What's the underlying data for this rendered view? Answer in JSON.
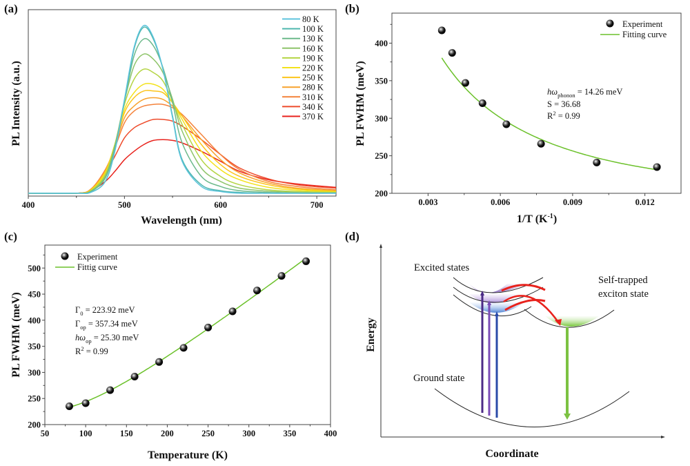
{
  "chart_data": [
    {
      "panel": "(a)",
      "type": "line",
      "xlabel": "Wavelength (nm)",
      "ylabel": "PL Intensity (a.u.)",
      "xlim": [
        400,
        720
      ],
      "ylim": [
        -0.017,
        1.095
      ],
      "xticks": [
        400,
        500,
        600,
        700
      ],
      "legend_position": "top-right",
      "x": [
        400,
        450,
        465,
        480,
        490,
        500,
        510,
        520,
        530,
        540,
        550,
        560,
        580,
        600,
        620,
        650,
        680,
        720
      ],
      "series": [
        {
          "name": "80 K",
          "color": "#5cc3dc",
          "values": [
            0,
            0,
            0.005,
            0.07,
            0.25,
            0.56,
            0.87,
            1.0,
            0.93,
            0.74,
            0.45,
            0.19,
            0.04,
            0.01,
            0,
            0,
            0,
            0
          ]
        },
        {
          "name": "100 K",
          "color": "#4eb6ad",
          "values": [
            0,
            0,
            0.006,
            0.07,
            0.25,
            0.55,
            0.86,
            0.99,
            0.92,
            0.74,
            0.46,
            0.2,
            0.05,
            0.015,
            0.005,
            0,
            0,
            0
          ]
        },
        {
          "name": "130 K",
          "color": "#6cb98a",
          "values": [
            0,
            0,
            0.01,
            0.09,
            0.27,
            0.55,
            0.82,
            0.92,
            0.88,
            0.75,
            0.54,
            0.3,
            0.1,
            0.04,
            0.015,
            0.005,
            0,
            0
          ]
        },
        {
          "name": "160 K",
          "color": "#8ec46a",
          "values": [
            0,
            0,
            0.012,
            0.1,
            0.28,
            0.55,
            0.76,
            0.83,
            0.8,
            0.72,
            0.56,
            0.37,
            0.15,
            0.07,
            0.03,
            0.012,
            0.005,
            0.002
          ]
        },
        {
          "name": "190 K",
          "color": "#b4d443",
          "values": [
            0,
            0,
            0.015,
            0.11,
            0.29,
            0.53,
            0.68,
            0.74,
            0.72,
            0.67,
            0.55,
            0.41,
            0.2,
            0.1,
            0.05,
            0.02,
            0.01,
            0.005
          ]
        },
        {
          "name": "220 K",
          "color": "#f3e21b",
          "values": [
            0,
            0,
            0.018,
            0.12,
            0.29,
            0.5,
            0.6,
            0.65,
            0.65,
            0.62,
            0.54,
            0.44,
            0.25,
            0.14,
            0.08,
            0.035,
            0.018,
            0.008
          ]
        },
        {
          "name": "250 K",
          "color": "#fcc41a",
          "values": [
            0,
            0,
            0.02,
            0.13,
            0.29,
            0.48,
            0.57,
            0.61,
            0.61,
            0.6,
            0.54,
            0.46,
            0.29,
            0.17,
            0.1,
            0.05,
            0.025,
            0.012
          ]
        },
        {
          "name": "280 K",
          "color": "#f7a12b",
          "values": [
            0,
            0,
            0.022,
            0.13,
            0.28,
            0.45,
            0.52,
            0.56,
            0.57,
            0.56,
            0.52,
            0.46,
            0.32,
            0.2,
            0.12,
            0.06,
            0.03,
            0.015
          ]
        },
        {
          "name": "310 K",
          "color": "#f4823a",
          "values": [
            0,
            0,
            0.024,
            0.14,
            0.27,
            0.42,
            0.49,
            0.52,
            0.53,
            0.53,
            0.51,
            0.47,
            0.35,
            0.23,
            0.14,
            0.07,
            0.04,
            0.02
          ]
        },
        {
          "name": "340 K",
          "color": "#ee4b2b",
          "values": [
            0,
            0,
            0.022,
            0.12,
            0.22,
            0.33,
            0.39,
            0.42,
            0.44,
            0.44,
            0.43,
            0.4,
            0.32,
            0.23,
            0.15,
            0.085,
            0.05,
            0.03
          ]
        },
        {
          "name": "370 K",
          "color": "#e8221c",
          "values": [
            0,
            0,
            0.015,
            0.07,
            0.13,
            0.2,
            0.25,
            0.29,
            0.315,
            0.32,
            0.315,
            0.3,
            0.25,
            0.19,
            0.13,
            0.08,
            0.055,
            0.035
          ]
        }
      ]
    },
    {
      "panel": "(b)",
      "type": "scatter",
      "xlabel": "1/T (K",
      "xlabel_sup": "-1",
      "xlabel_end": ")",
      "ylabel": "PL FWHM (meV)",
      "xlim": [
        0.0015,
        0.0135
      ],
      "ylim": [
        200,
        440
      ],
      "xticks": [
        0.003,
        0.006,
        0.009,
        0.012
      ],
      "xtick_labels": [
        "0.003",
        "0.006",
        "0.009",
        "0.012"
      ],
      "yticks": [
        200,
        250,
        300,
        350,
        400
      ],
      "legend_position": "top-right",
      "legend": [
        "Experiment",
        "Fitting curve"
      ],
      "fit_color": "#6cc12b",
      "points": {
        "x": [
          0.00357,
          0.004,
          0.00455,
          0.00526,
          0.00625,
          0.00769,
          0.01,
          0.0125
        ],
        "y": [
          417,
          387,
          347,
          320,
          292,
          266,
          241,
          235
        ]
      },
      "fit": {
        "hw_phonon_meV": 14.26,
        "S": 36.68,
        "range": [
          0.00357,
          0.0125
        ]
      },
      "annotations": {
        "line1": {
          "main": "hω",
          "sub": "phonon",
          "rest": " = 14.26 meV"
        },
        "line2": "S = 36.68",
        "line3": {
          "main": "R",
          "sup": "2",
          "rest": " = 0.99"
        }
      }
    },
    {
      "panel": "(c)",
      "type": "scatter",
      "xlabel": "Temperature (K)",
      "ylabel": "PL FWHM (meV)",
      "xlim": [
        50,
        400
      ],
      "ylim": [
        200,
        544
      ],
      "xticks": [
        50,
        100,
        150,
        200,
        250,
        300,
        350,
        400
      ],
      "yticks": [
        200,
        250,
        300,
        350,
        400,
        450,
        500
      ],
      "legend_position": "top-left",
      "legend": [
        "Experiment",
        "Fittig curve"
      ],
      "fit_color": "#6cc12b",
      "points": {
        "x": [
          80,
          100,
          130,
          160,
          190,
          220,
          250,
          280,
          310,
          340,
          370
        ],
        "y": [
          235,
          241,
          266,
          292,
          320,
          347,
          386,
          417,
          457,
          485,
          513
        ]
      },
      "fit": {
        "gamma0_meV": 223.92,
        "gamma_op_meV": 357.34,
        "hw_op_meV": 25.3,
        "range": [
          80,
          370
        ]
      },
      "annotations": {
        "line1": {
          "main": "Γ",
          "sub": "0",
          "rest": " = 223.92 meV"
        },
        "line2": {
          "main": "Γ",
          "sub": "op",
          "rest": " =  357.34 meV"
        },
        "line3": {
          "main": "hω",
          "sub": "op",
          "rest": " = 25.30 meV"
        },
        "line4": {
          "main": "R",
          "sup": "2",
          "rest": " = 0.99"
        }
      }
    }
  ],
  "diagram": {
    "panel": "(d)",
    "y_axis": "Energy",
    "x_axis": "Coordinate",
    "excited_label": "Excited states",
    "ste_label_1": "Self-trapped",
    "ste_label_2": "exciton state",
    "ground_label": "Ground state",
    "colors": {
      "excitation_1": "#4b2a86",
      "excitation_2": "#7a4bb5",
      "excitation_3": "#2a4aa8",
      "emission": "#7cc242",
      "relaxation": "#e8221c"
    }
  }
}
